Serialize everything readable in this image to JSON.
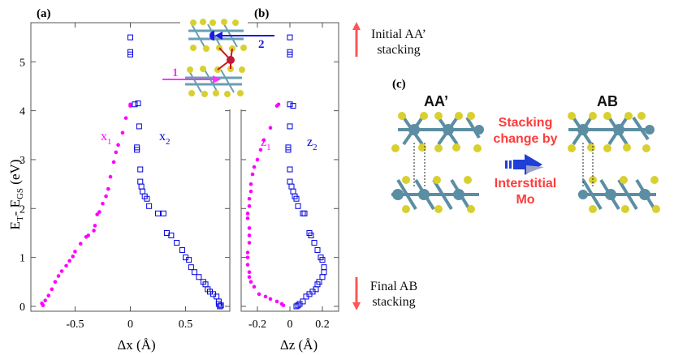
{
  "chart_data": [
    {
      "panel": "(a)",
      "type": "scatter",
      "xlabel": "Δx (Å)",
      "ylabel": "E_T - E_GS (eV)",
      "xlim": [
        -0.9,
        0.9
      ],
      "ylim": [
        -0.1,
        5.8
      ],
      "xticks": [
        "-0.5",
        "0",
        "0.5"
      ],
      "yticks": [
        "0",
        "1",
        "2",
        "3",
        "4",
        "5"
      ],
      "series": [
        {
          "name": "x1",
          "color": "#ff00ff",
          "marker": "filled-circle",
          "points": [
            [
              -0.79,
              0.02
            ],
            [
              -0.8,
              0.06
            ],
            [
              -0.77,
              0.12
            ],
            [
              -0.74,
              0.22
            ],
            [
              -0.71,
              0.35
            ],
            [
              -0.68,
              0.5
            ],
            [
              -0.65,
              0.62
            ],
            [
              -0.62,
              0.72
            ],
            [
              -0.58,
              0.83
            ],
            [
              -0.55,
              0.93
            ],
            [
              -0.52,
              1.02
            ],
            [
              -0.5,
              1.12
            ],
            [
              -0.45,
              1.28
            ],
            [
              -0.4,
              1.42
            ],
            [
              -0.38,
              1.45
            ],
            [
              -0.33,
              1.55
            ],
            [
              -0.32,
              1.65
            ],
            [
              -0.3,
              1.88
            ],
            [
              -0.28,
              1.93
            ],
            [
              -0.25,
              2.1
            ],
            [
              -0.22,
              2.25
            ],
            [
              -0.2,
              2.4
            ],
            [
              -0.18,
              2.65
            ],
            [
              -0.15,
              2.95
            ],
            [
              -0.13,
              3.15
            ],
            [
              -0.11,
              3.3
            ],
            [
              -0.07,
              3.55
            ],
            [
              -0.04,
              3.85
            ],
            [
              0.0,
              4.1
            ],
            [
              0.0,
              4.13
            ]
          ]
        },
        {
          "name": "x2",
          "color": "#0000dd",
          "marker": "open-square",
          "points": [
            [
              0.0,
              5.15
            ],
            [
              0.0,
              5.2
            ],
            [
              0.0,
              5.5
            ],
            [
              0.04,
              4.13
            ],
            [
              0.07,
              4.15
            ],
            [
              0.08,
              3.68
            ],
            [
              0.06,
              3.25
            ],
            [
              0.06,
              3.2
            ],
            [
              0.09,
              2.8
            ],
            [
              0.09,
              2.55
            ],
            [
              0.1,
              2.45
            ],
            [
              0.11,
              2.35
            ],
            [
              0.13,
              2.25
            ],
            [
              0.15,
              2.2
            ],
            [
              0.17,
              2.05
            ],
            [
              0.25,
              1.9
            ],
            [
              0.3,
              1.9
            ],
            [
              0.33,
              1.5
            ],
            [
              0.37,
              1.45
            ],
            [
              0.42,
              1.3
            ],
            [
              0.47,
              1.15
            ],
            [
              0.5,
              1.0
            ],
            [
              0.53,
              0.95
            ],
            [
              0.55,
              0.8
            ],
            [
              0.58,
              0.7
            ],
            [
              0.62,
              0.6
            ],
            [
              0.66,
              0.5
            ],
            [
              0.68,
              0.45
            ],
            [
              0.7,
              0.35
            ],
            [
              0.72,
              0.3
            ],
            [
              0.75,
              0.25
            ],
            [
              0.78,
              0.2
            ],
            [
              0.8,
              0.1
            ],
            [
              0.8,
              0.05
            ],
            [
              0.82,
              0.02
            ],
            [
              0.81,
              0.0
            ]
          ]
        }
      ]
    },
    {
      "panel": "(b)",
      "type": "scatter",
      "xlabel": "Δz (Å)",
      "xlim": [
        -0.3,
        0.3
      ],
      "ylim": [
        -0.1,
        5.8
      ],
      "xticks": [
        "-0.2",
        "0",
        "0.2"
      ],
      "yticks": [
        "0",
        "1",
        "2",
        "3",
        "4",
        "5"
      ],
      "series": [
        {
          "name": "z1",
          "color": "#ff00ff",
          "marker": "filled-circle",
          "points": [
            [
              -0.04,
              0.02
            ],
            [
              -0.05,
              0.05
            ],
            [
              -0.08,
              0.1
            ],
            [
              -0.12,
              0.15
            ],
            [
              -0.15,
              0.2
            ],
            [
              -0.19,
              0.25
            ],
            [
              -0.22,
              0.4
            ],
            [
              -0.24,
              0.5
            ],
            [
              -0.25,
              0.6
            ],
            [
              -0.25,
              0.7
            ],
            [
              -0.26,
              0.85
            ],
            [
              -0.26,
              1.0
            ],
            [
              -0.26,
              1.1
            ],
            [
              -0.25,
              1.3
            ],
            [
              -0.25,
              1.45
            ],
            [
              -0.25,
              1.6
            ],
            [
              -0.26,
              1.8
            ],
            [
              -0.26,
              1.9
            ],
            [
              -0.25,
              2.05
            ],
            [
              -0.25,
              2.2
            ],
            [
              -0.24,
              2.35
            ],
            [
              -0.24,
              2.5
            ],
            [
              -0.23,
              2.7
            ],
            [
              -0.22,
              2.85
            ],
            [
              -0.2,
              3.0
            ],
            [
              -0.18,
              3.2
            ],
            [
              -0.16,
              3.4
            ],
            [
              -0.12,
              3.65
            ],
            [
              -0.08,
              4.1
            ],
            [
              -0.07,
              4.13
            ]
          ]
        },
        {
          "name": "z2",
          "color": "#0000dd",
          "marker": "open-square",
          "points": [
            [
              0.0,
              5.15
            ],
            [
              0.0,
              5.2
            ],
            [
              0.0,
              5.5
            ],
            [
              0.0,
              4.13
            ],
            [
              0.02,
              4.1
            ],
            [
              0.0,
              3.68
            ],
            [
              -0.01,
              3.25
            ],
            [
              -0.01,
              3.2
            ],
            [
              0.0,
              2.8
            ],
            [
              0.0,
              2.55
            ],
            [
              0.01,
              2.45
            ],
            [
              0.02,
              2.35
            ],
            [
              0.03,
              2.25
            ],
            [
              0.04,
              2.2
            ],
            [
              0.05,
              2.05
            ],
            [
              0.08,
              1.9
            ],
            [
              0.09,
              1.9
            ],
            [
              0.12,
              1.5
            ],
            [
              0.13,
              1.45
            ],
            [
              0.15,
              1.3
            ],
            [
              0.17,
              1.15
            ],
            [
              0.19,
              1.0
            ],
            [
              0.2,
              0.95
            ],
            [
              0.21,
              0.8
            ],
            [
              0.21,
              0.7
            ],
            [
              0.2,
              0.6
            ],
            [
              0.18,
              0.5
            ],
            [
              0.17,
              0.45
            ],
            [
              0.16,
              0.35
            ],
            [
              0.14,
              0.3
            ],
            [
              0.12,
              0.25
            ],
            [
              0.1,
              0.2
            ],
            [
              0.08,
              0.1
            ],
            [
              0.06,
              0.05
            ],
            [
              0.05,
              0.02
            ],
            [
              0.04,
              0.0
            ]
          ]
        }
      ]
    }
  ],
  "labels": {
    "panel_a": "(a)",
    "panel_b": "(b)",
    "panel_c": "(c)",
    "x1": "x",
    "x1_sub": "1",
    "x2": "x",
    "x2_sub": "2",
    "z1": "z",
    "z1_sub": "1",
    "z2": "z",
    "z2_sub": "2",
    "ylabel_main": "E",
    "ylabel_sub1": "T",
    "ylabel_mid": "- E",
    "ylabel_sub2": "GS",
    "ylabel_unit": " (eV)",
    "xlabel_a": "Δx (Å)",
    "xlabel_b": "Δz (Å)",
    "inset_1": "1",
    "inset_2": "2"
  },
  "side": {
    "initial_line1": "Initial AA’",
    "initial_line2": "stacking",
    "final_line1": "Final AB",
    "final_line2": "stacking",
    "arrow_color": "#ff5555"
  },
  "panel_c": {
    "left_title": "AA’",
    "right_title": "AB",
    "red_line1": "Stacking",
    "red_line2": "change by",
    "red_line3": "Interstitial",
    "red_line4": "Mo",
    "mo_color": "#5b8ea3",
    "s_color": "#d8d030",
    "text_color": "#ff3b3b"
  }
}
